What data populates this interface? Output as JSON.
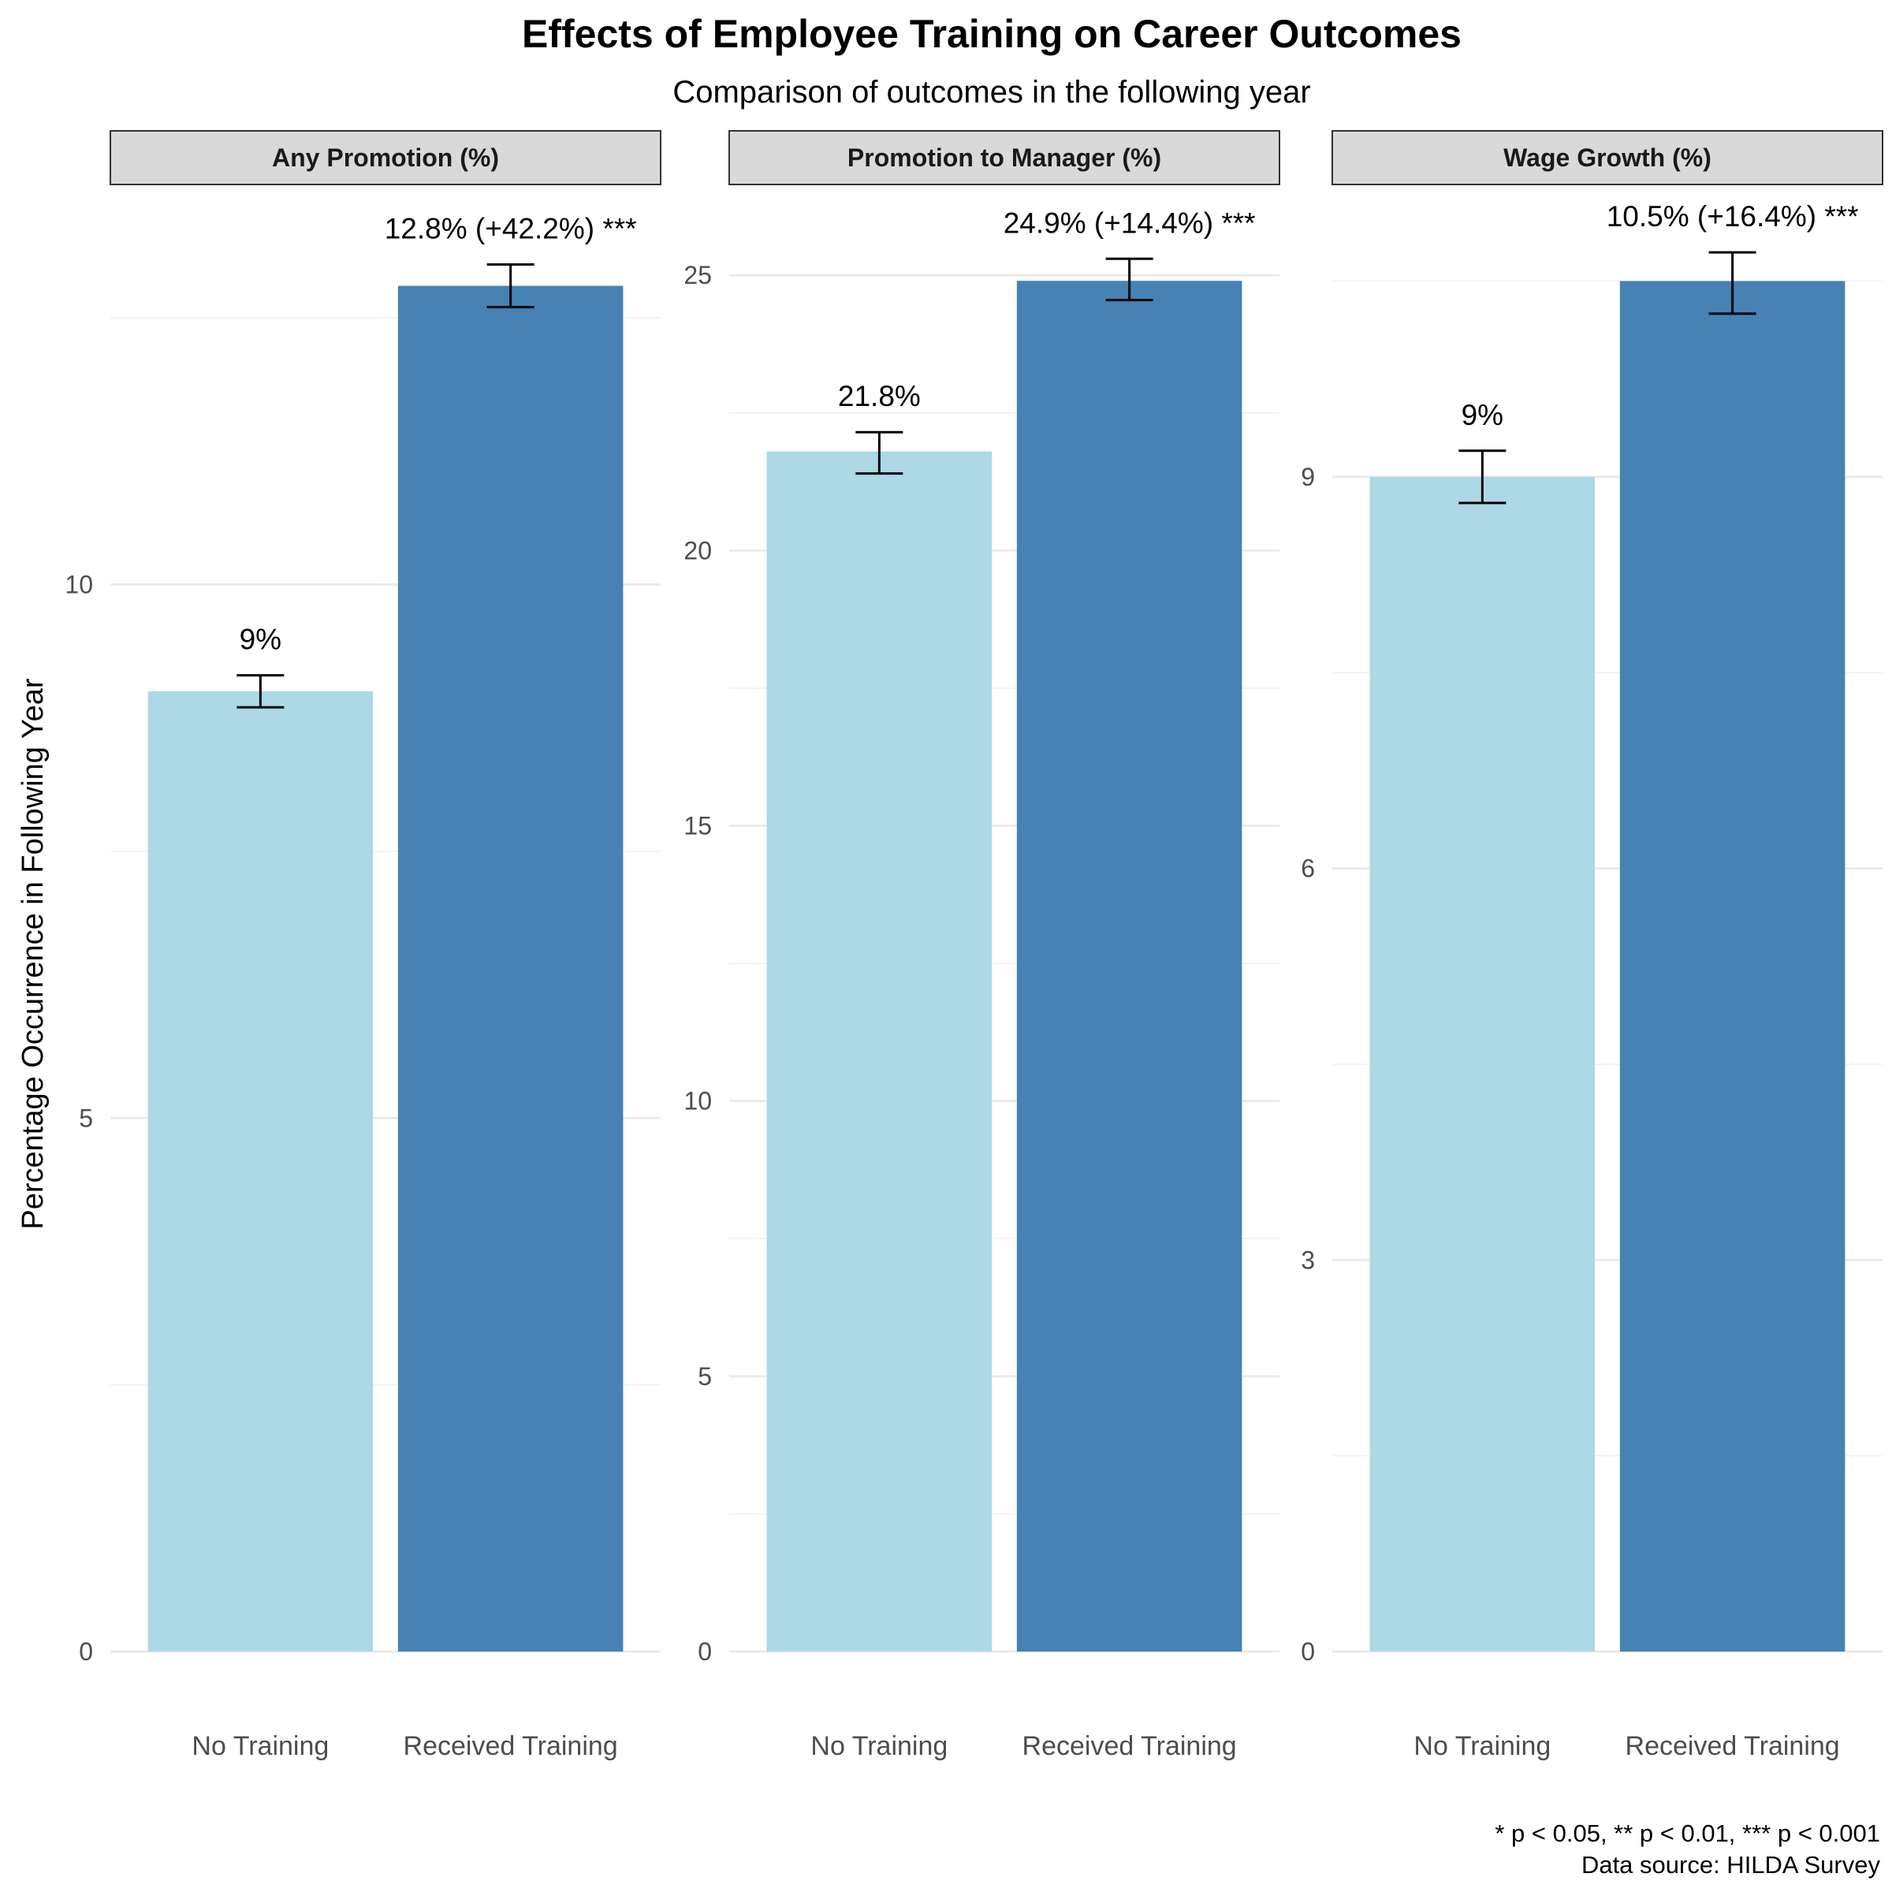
{
  "chart_data": {
    "type": "bar",
    "title": "Effects of Employee Training on Career Outcomes",
    "subtitle": "Comparison of outcomes in the following year",
    "ylabel": "Percentage Occurrence in Following Year",
    "caption": [
      "* p < 0.05, ** p < 0.01, *** p < 0.001",
      "Data source: HILDA Survey"
    ],
    "categories": [
      "No Training",
      "Received Training"
    ],
    "colors": [
      "#add8e6",
      "#4682b4"
    ],
    "grid": true,
    "panels": [
      {
        "name": "Any Promotion (%)",
        "values": [
          9.0,
          12.8
        ],
        "error_low": [
          8.85,
          12.6
        ],
        "error_high": [
          9.15,
          13.0
        ],
        "labels": [
          "9%",
          "12.8% (+42.2%) ***"
        ],
        "ylim": [
          0,
          13.75
        ],
        "ticks": [
          0,
          5,
          10
        ]
      },
      {
        "name": "Promotion to Manager (%)",
        "values": [
          21.8,
          24.9
        ],
        "error_low": [
          21.4,
          24.55
        ],
        "error_high": [
          22.15,
          25.3
        ],
        "labels": [
          "21.8%",
          "24.9% (+14.4%) ***"
        ],
        "ylim": [
          0,
          26.65
        ],
        "ticks": [
          0,
          5,
          10,
          15,
          20,
          25
        ]
      },
      {
        "name": "Wage Growth (%)",
        "values": [
          9.0,
          10.5
        ],
        "error_low": [
          8.8,
          10.25
        ],
        "error_high": [
          9.2,
          10.72
        ],
        "labels": [
          "9%",
          "10.5% (+16.4%) ***"
        ],
        "ylim": [
          0,
          11.24
        ],
        "ticks": [
          0,
          3,
          6,
          9
        ]
      }
    ]
  }
}
